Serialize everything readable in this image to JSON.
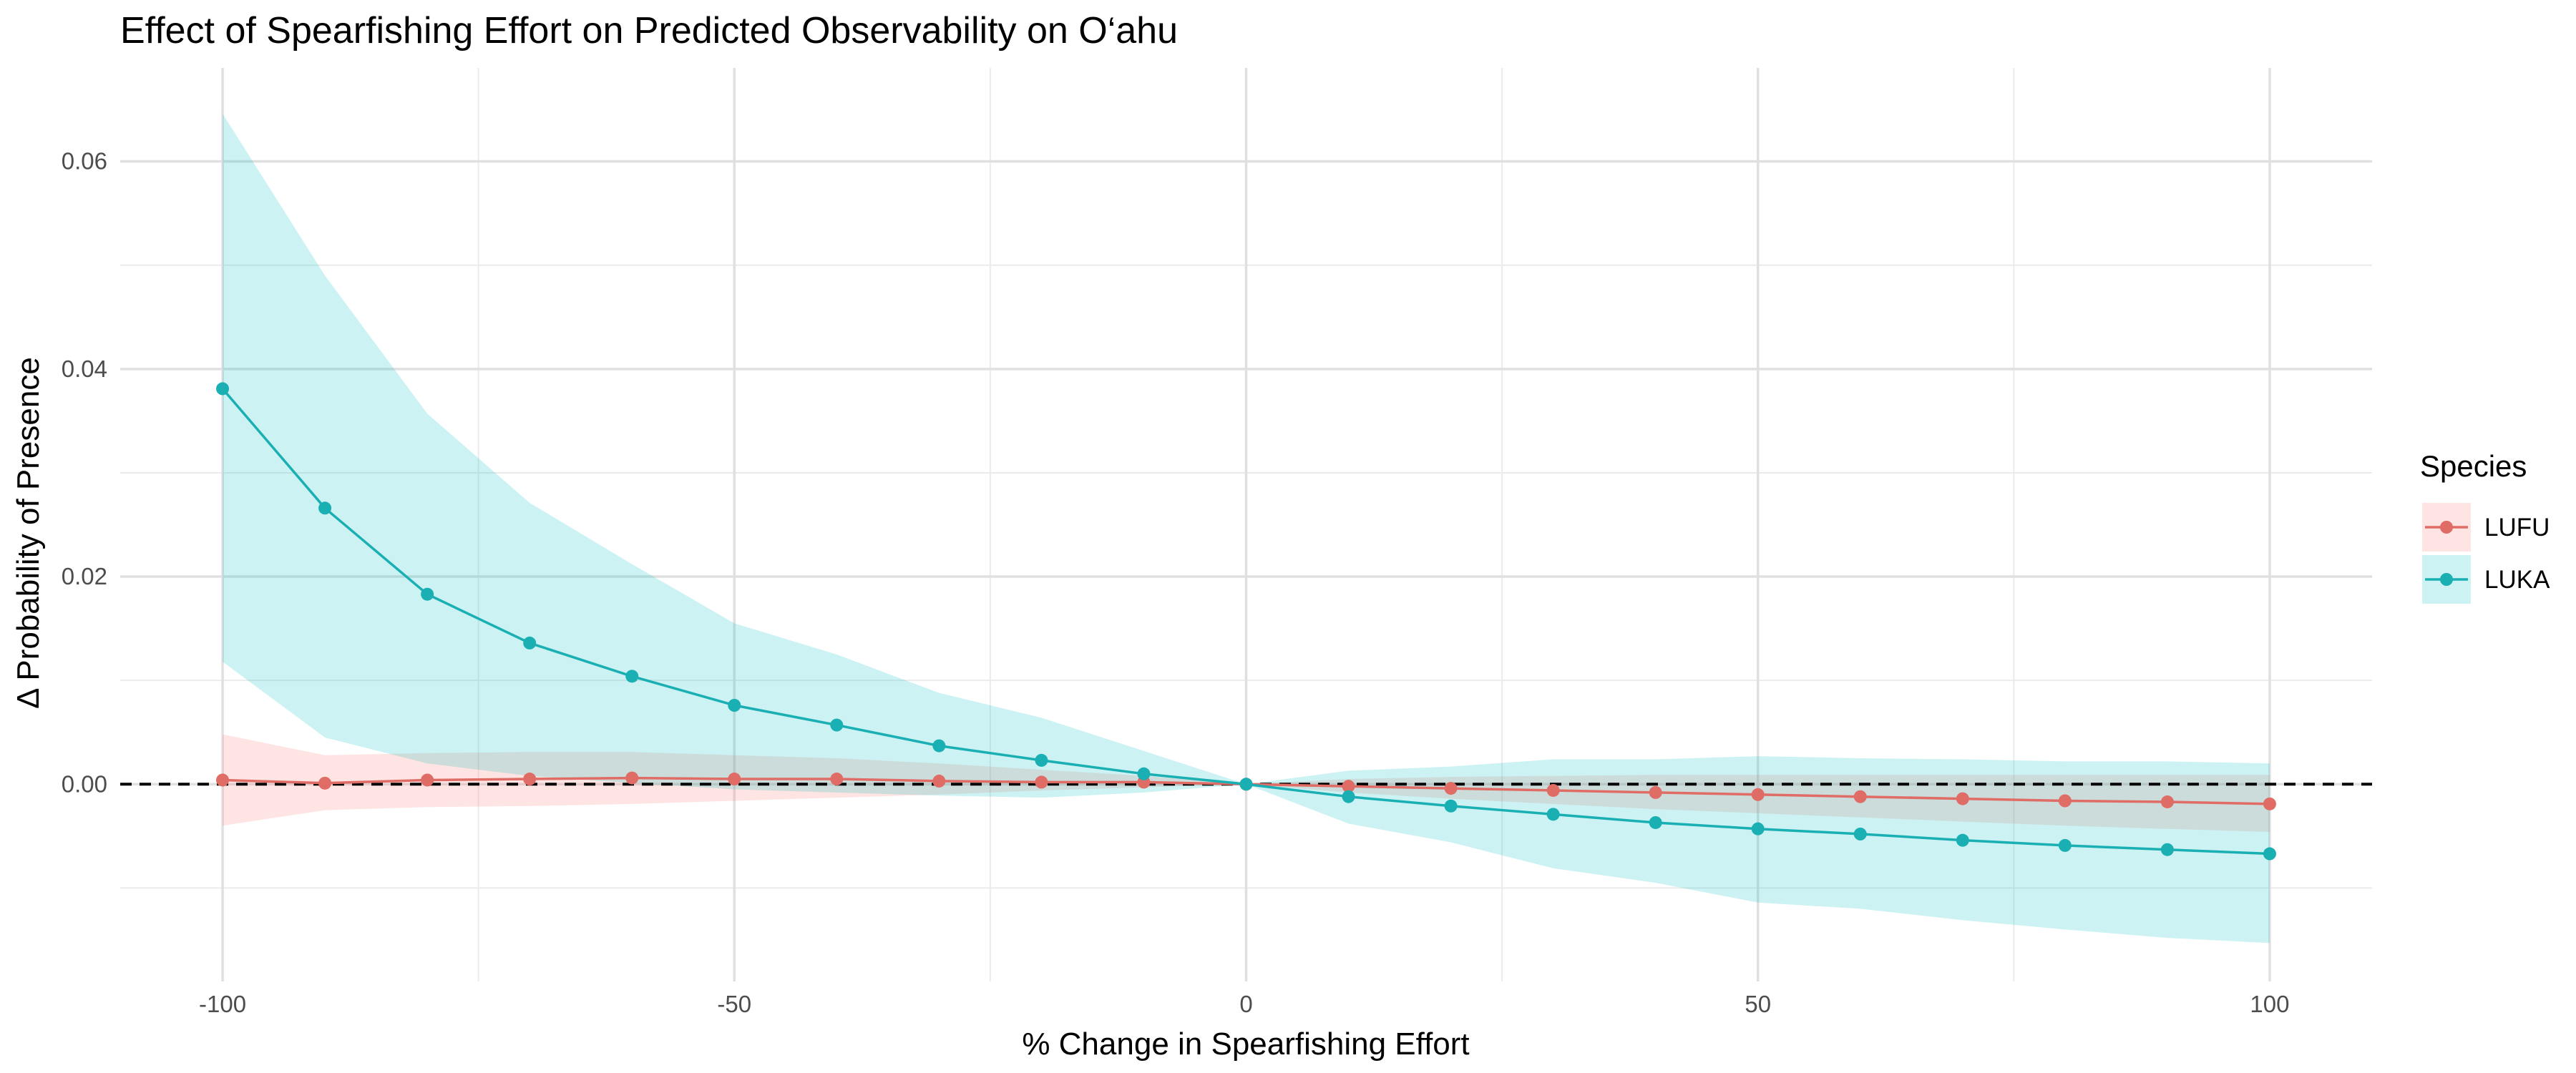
{
  "chart_data": {
    "type": "line",
    "title": "Effect of Spearfishing Effort on Predicted Observability on O‘ahu",
    "xlabel": "% Change in Spearfishing Effort",
    "ylabel": "Δ Probability of Presence",
    "xlim": [
      -110,
      110
    ],
    "ylim": [
      -0.019,
      0.069
    ],
    "x_ticks": [
      -100,
      -50,
      0,
      50,
      100
    ],
    "x_tick_labels": [
      "-100",
      "-50",
      "0",
      "50",
      "100"
    ],
    "y_ticks": [
      0.0,
      0.02,
      0.04,
      0.06
    ],
    "y_tick_labels": [
      "0.00",
      "0.02",
      "0.04",
      "0.06"
    ],
    "x_minor": [
      -75,
      -25,
      25,
      75
    ],
    "y_minor": [
      -0.01,
      0.01,
      0.03,
      0.05
    ],
    "grid": true,
    "reference_line": {
      "y": 0,
      "style": "dashed"
    },
    "legend": {
      "title": "Species",
      "position": "right"
    },
    "x": [
      -100,
      -90,
      -80,
      -70,
      -60,
      -50,
      -40,
      -30,
      -20,
      -10,
      0,
      10,
      20,
      30,
      40,
      50,
      60,
      70,
      80,
      90,
      100
    ],
    "series": [
      {
        "name": "LUFU",
        "color": "#E06C66",
        "fill": "#F8766D",
        "values": [
          0.0004,
          0.0001,
          0.0004,
          0.0005,
          0.0006,
          0.0005,
          0.0005,
          0.0003,
          0.0002,
          0.0002,
          0.0,
          -0.0002,
          -0.0004,
          -0.0006,
          -0.0008,
          -0.001,
          -0.0012,
          -0.0014,
          -0.0016,
          -0.0017,
          -0.0019
        ],
        "lower": [
          -0.004,
          -0.0025,
          -0.0022,
          -0.0021,
          -0.0019,
          -0.0016,
          -0.0013,
          -0.001,
          -0.0006,
          -0.0003,
          0.0,
          -0.0008,
          -0.0014,
          -0.0019,
          -0.0024,
          -0.0028,
          -0.0032,
          -0.0036,
          -0.004,
          -0.0043,
          -0.0046
        ],
        "upper": [
          0.0048,
          0.0028,
          0.003,
          0.0031,
          0.0031,
          0.0028,
          0.0025,
          0.002,
          0.0014,
          0.0008,
          0.0,
          0.0005,
          0.0007,
          0.0008,
          0.0009,
          0.0009,
          0.0009,
          0.0009,
          0.0009,
          0.0009,
          0.0009
        ]
      },
      {
        "name": "LUKA",
        "color": "#1AAFB3",
        "fill": "#00BFC4",
        "values": [
          0.0381,
          0.0266,
          0.0183,
          0.0136,
          0.0104,
          0.0076,
          0.0057,
          0.0037,
          0.0023,
          0.001,
          0.0,
          -0.0012,
          -0.0021,
          -0.0029,
          -0.0037,
          -0.0043,
          -0.0048,
          -0.0054,
          -0.0059,
          -0.0063,
          -0.0067
        ],
        "lower": [
          0.0118,
          0.0045,
          0.002,
          0.0008,
          0.0001,
          -0.0005,
          -0.0008,
          -0.0011,
          -0.0013,
          -0.0008,
          0.0,
          -0.0038,
          -0.0056,
          -0.0081,
          -0.0095,
          -0.0114,
          -0.012,
          -0.0131,
          -0.014,
          -0.0148,
          -0.0153
        ],
        "upper": [
          0.0646,
          0.049,
          0.0357,
          0.0271,
          0.0212,
          0.0155,
          0.0125,
          0.0088,
          0.0064,
          0.0032,
          0.0,
          0.0013,
          0.0017,
          0.0024,
          0.0024,
          0.0027,
          0.0025,
          0.0024,
          0.0022,
          0.0022,
          0.002
        ]
      }
    ]
  }
}
